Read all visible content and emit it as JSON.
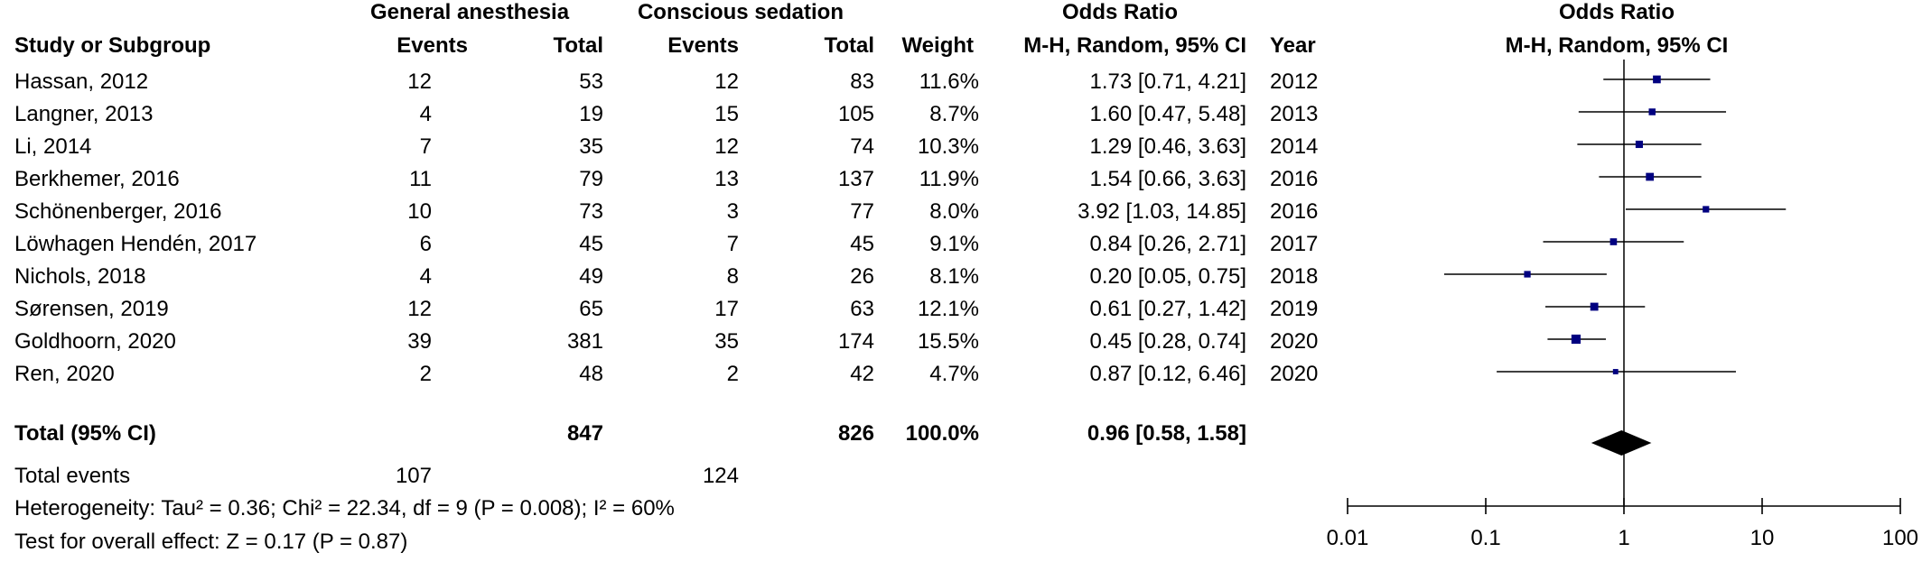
{
  "header": {
    "group1": "General anesthesia",
    "group2": "Conscious sedation",
    "or_table": "Odds Ratio",
    "or_plot": "Odds Ratio",
    "col_study": "Study or Subgroup",
    "col_events1": "Events",
    "col_total1": "Total",
    "col_events2": "Events",
    "col_total2": "Total",
    "col_weight": "Weight",
    "col_method": "M-H, Random, 95% CI",
    "col_year": "Year",
    "col_method_plot": "M-H, Random, 95% CI"
  },
  "studies": [
    {
      "name": "Hassan, 2012",
      "events1": "12",
      "total1": "53",
      "events2": "12",
      "total2": "83",
      "weight": "11.6%",
      "ci_text": "1.73 [0.71, 4.21]",
      "year": "2012"
    },
    {
      "name": "Langner, 2013",
      "events1": "4",
      "total1": "19",
      "events2": "15",
      "total2": "105",
      "weight": "8.7%",
      "ci_text": "1.60 [0.47, 5.48]",
      "year": "2013"
    },
    {
      "name": "Li, 2014",
      "events1": "7",
      "total1": "35",
      "events2": "12",
      "total2": "74",
      "weight": "10.3%",
      "ci_text": "1.29 [0.46, 3.63]",
      "year": "2014"
    },
    {
      "name": "Berkhemer, 2016",
      "events1": "11",
      "total1": "79",
      "events2": "13",
      "total2": "137",
      "weight": "11.9%",
      "ci_text": "1.54 [0.66, 3.63]",
      "year": "2016"
    },
    {
      "name": "Schönenberger, 2016",
      "events1": "10",
      "total1": "73",
      "events2": "3",
      "total2": "77",
      "weight": "8.0%",
      "ci_text": "3.92 [1.03, 14.85]",
      "year": "2016"
    },
    {
      "name": "Löwhagen Hendén, 2017",
      "events1": "6",
      "total1": "45",
      "events2": "7",
      "total2": "45",
      "weight": "9.1%",
      "ci_text": "0.84 [0.26, 2.71]",
      "year": "2017"
    },
    {
      "name": "Nichols, 2018",
      "events1": "4",
      "total1": "49",
      "events2": "8",
      "total2": "26",
      "weight": "8.1%",
      "ci_text": "0.20 [0.05, 0.75]",
      "year": "2018"
    },
    {
      "name": "Sørensen, 2019",
      "events1": "12",
      "total1": "65",
      "events2": "17",
      "total2": "63",
      "weight": "12.1%",
      "ci_text": "0.61 [0.27, 1.42]",
      "year": "2019"
    },
    {
      "name": "Goldhoorn, 2020",
      "events1": "39",
      "total1": "381",
      "events2": "35",
      "total2": "174",
      "weight": "15.5%",
      "ci_text": "0.45 [0.28, 0.74]",
      "year": "2020"
    },
    {
      "name": "Ren, 2020",
      "events1": "2",
      "total1": "48",
      "events2": "2",
      "total2": "42",
      "weight": "4.7%",
      "ci_text": "0.87 [0.12, 6.46]",
      "year": "2020"
    }
  ],
  "total": {
    "label": "Total (95% CI)",
    "total1": "847",
    "total2": "826",
    "weight": "100.0%",
    "ci_text": "0.96 [0.58, 1.58]"
  },
  "footer": {
    "events_label": "Total events",
    "events1": "107",
    "events2": "124",
    "heterogeneity": "Heterogeneity: Tau² = 0.36; Chi² = 22.34, df = 9 (P = 0.008); I² = 60%",
    "overall": "Test for overall effect: Z = 0.17 (P = 0.87)"
  },
  "chart_data": {
    "type": "forest",
    "x_scale": "log",
    "xlim": [
      0.01,
      100
    ],
    "ticks": [
      0.01,
      0.1,
      1,
      10,
      100
    ],
    "tick_labels": [
      "0.01",
      "0.1",
      "1",
      "10",
      "100"
    ],
    "reference_line": 1,
    "studies": [
      {
        "name": "Hassan, 2012",
        "or": 1.73,
        "lo": 0.71,
        "hi": 4.21,
        "weight": 11.6
      },
      {
        "name": "Langner, 2013",
        "or": 1.6,
        "lo": 0.47,
        "hi": 5.48,
        "weight": 8.7
      },
      {
        "name": "Li, 2014",
        "or": 1.29,
        "lo": 0.46,
        "hi": 3.63,
        "weight": 10.3
      },
      {
        "name": "Berkhemer, 2016",
        "or": 1.54,
        "lo": 0.66,
        "hi": 3.63,
        "weight": 11.9
      },
      {
        "name": "Schönenberger, 2016",
        "or": 3.92,
        "lo": 1.03,
        "hi": 14.85,
        "weight": 8.0
      },
      {
        "name": "Löwhagen Hendén, 2017",
        "or": 0.84,
        "lo": 0.26,
        "hi": 2.71,
        "weight": 9.1
      },
      {
        "name": "Nichols, 2018",
        "or": 0.2,
        "lo": 0.05,
        "hi": 0.75,
        "weight": 8.1
      },
      {
        "name": "Sørensen, 2019",
        "or": 0.61,
        "lo": 0.27,
        "hi": 1.42,
        "weight": 12.1
      },
      {
        "name": "Goldhoorn, 2020",
        "or": 0.45,
        "lo": 0.28,
        "hi": 0.74,
        "weight": 15.5
      },
      {
        "name": "Ren, 2020",
        "or": 0.87,
        "lo": 0.12,
        "hi": 6.46,
        "weight": 4.7
      }
    ],
    "pooled": {
      "or": 0.96,
      "lo": 0.58,
      "hi": 1.58
    },
    "colors": {
      "marker": "#000080",
      "line": "#000000",
      "diamond": "#000000"
    }
  }
}
